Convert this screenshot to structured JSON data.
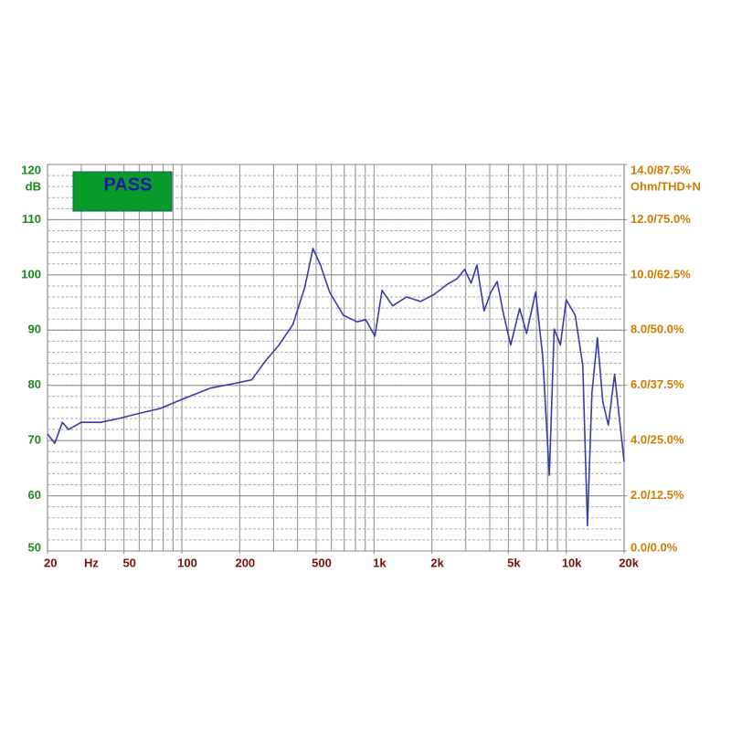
{
  "chart_data": {
    "type": "line",
    "status": "PASS",
    "y_unit": "dB",
    "x_unit": "Hz",
    "y2_label": "Ohm/THD+N",
    "log_x": true,
    "grid": true,
    "xlim": [
      20,
      20000
    ],
    "xticks": [
      20,
      50,
      100,
      200,
      500,
      {
        "value": 1000,
        "label": "1k"
      },
      {
        "value": 2000,
        "label": "2k"
      },
      {
        "value": 5000,
        "label": "5k"
      },
      {
        "value": 10000,
        "label": "10k"
      },
      {
        "value": 20000,
        "label": "20k"
      }
    ],
    "ylim": [
      50,
      120
    ],
    "yticks": [
      50,
      60,
      70,
      80,
      90,
      100,
      110,
      120
    ],
    "y2lim": [
      0,
      14
    ],
    "y2ticks": [
      {
        "value": 0,
        "label": "0.0/0.0%"
      },
      {
        "value": 2,
        "label": "2.0/12.5%"
      },
      {
        "value": 4,
        "label": "4.0/25.0%"
      },
      {
        "value": 6,
        "label": "6.0/37.5%"
      },
      {
        "value": 8,
        "label": "8.0/50.0%"
      },
      {
        "value": 10,
        "label": "10.0/62.5%"
      },
      {
        "value": 12,
        "label": "12.0/75.0%"
      },
      {
        "value": 14,
        "label": "14.0/87.5%"
      }
    ],
    "x": [
      20,
      21.8,
      23.9,
      25.7,
      30,
      37.8,
      47,
      58,
      77,
      101,
      141,
      185,
      231,
      272,
      320,
      378,
      436,
      481,
      526,
      587,
      692,
      816,
      906,
      1010,
      1100,
      1250,
      1475,
      1745,
      2060,
      2380,
      2700,
      2960,
      3200,
      3430,
      3740,
      4060,
      4370,
      4730,
      5140,
      5720,
      6220,
      6930,
      7540,
      8170,
      8660,
      9320,
      10000,
      11140,
      12200,
      12890,
      13600,
      14520,
      15500,
      16560,
      17850,
      20000
    ],
    "series": [
      {
        "color": "#3a3aa8",
        "values": [
          71.2,
          69.5,
          73.3,
          72,
          73.3,
          73.3,
          74,
          74.8,
          75.8,
          77.5,
          79.5,
          80.3,
          81,
          84.4,
          87.3,
          91,
          97.7,
          104.8,
          101.8,
          96.9,
          92.7,
          91.5,
          91.9,
          88.9,
          97.2,
          94.4,
          96,
          95.2,
          96.5,
          98.2,
          99.3,
          101,
          98.5,
          101.8,
          93.5,
          96.9,
          98.8,
          92.7,
          87.3,
          93.9,
          89.4,
          96.9,
          85.3,
          63.7,
          90.2,
          87.3,
          95.5,
          92.7,
          83.6,
          54.6,
          78.6,
          88.6,
          77,
          72.8,
          82,
          66.2
        ]
      }
    ]
  }
}
